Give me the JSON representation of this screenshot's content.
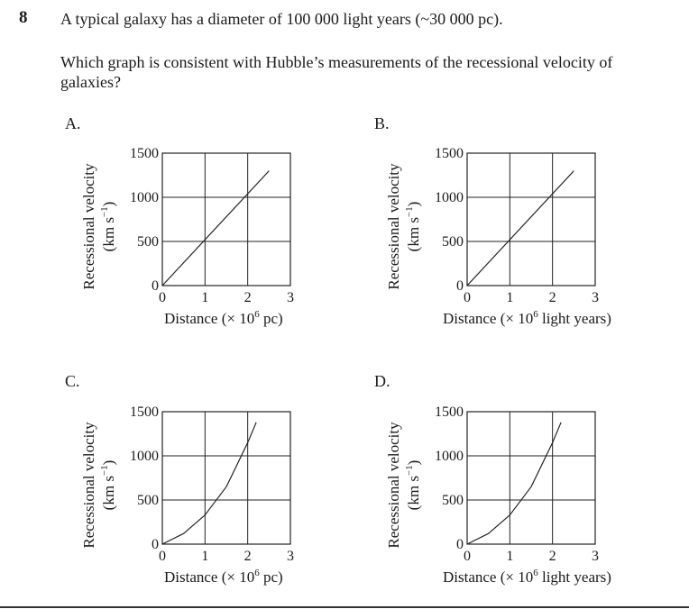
{
  "question": {
    "number": "8",
    "line1": "A typical galaxy has a diameter of 100 000 light years (~30 000 pc).",
    "line2": "Which graph is consistent with Hubble’s measurements of the recessional velocity of galaxies?"
  },
  "options": [
    {
      "letter": "A.",
      "xlabel_prefix": "Distance (× 10",
      "xlabel_exp": "6",
      "xlabel_suffix": " pc)",
      "curve": "linear"
    },
    {
      "letter": "B.",
      "xlabel_prefix": "Distance (× 10",
      "xlabel_exp": "6",
      "xlabel_suffix": " light years)",
      "curve": "linear"
    },
    {
      "letter": "C.",
      "xlabel_prefix": "Distance (× 10",
      "xlabel_exp": "6",
      "xlabel_suffix": " pc)",
      "curve": "curved"
    },
    {
      "letter": "D.",
      "xlabel_prefix": "Distance (× 10",
      "xlabel_exp": "6",
      "xlabel_suffix": " light years)",
      "curve": "curved"
    }
  ],
  "axis": {
    "ylabel_line1": "Recessional velocity",
    "ylabel_line2_prefix": "(km s",
    "ylabel_line2_exp": "−1",
    "ylabel_line2_suffix": ")",
    "yticks": [
      "1500",
      "1000",
      "500",
      "0"
    ],
    "xticks": [
      "0",
      "1",
      "2",
      "3"
    ]
  },
  "chart_data": [
    {
      "type": "line",
      "x": [
        0,
        2.5
      ],
      "y": [
        0,
        1300
      ],
      "xlim": [
        0,
        3
      ],
      "ylim": [
        0,
        1500
      ]
    },
    {
      "type": "line",
      "x": [
        0,
        2.5
      ],
      "y": [
        0,
        1300
      ],
      "xlim": [
        0,
        3
      ],
      "ylim": [
        0,
        1500
      ]
    },
    {
      "type": "line",
      "x": [
        0,
        0.5,
        1,
        1.5,
        2,
        2.2
      ],
      "y": [
        0,
        120,
        330,
        650,
        1150,
        1380
      ],
      "xlim": [
        0,
        3
      ],
      "ylim": [
        0,
        1500
      ]
    },
    {
      "type": "line",
      "x": [
        0,
        0.5,
        1,
        1.5,
        2,
        2.2
      ],
      "y": [
        0,
        120,
        330,
        650,
        1150,
        1380
      ],
      "xlim": [
        0,
        3
      ],
      "ylim": [
        0,
        1500
      ]
    }
  ]
}
